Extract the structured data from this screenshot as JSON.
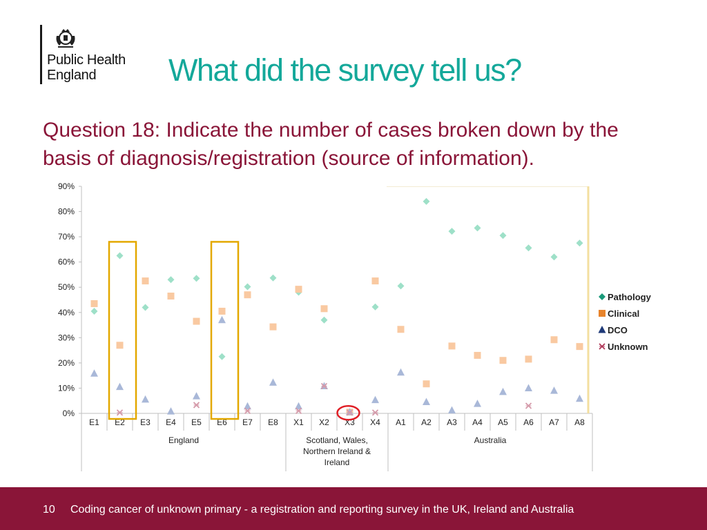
{
  "logo": {
    "line1": "Public Health",
    "line2": "England",
    "crest_icon": "royal-crest-icon"
  },
  "title": "What did the survey tell us?",
  "question": "Question 18: Indicate the number of cases broken down by the basis of diagnosis/registration (source of information).",
  "colors": {
    "title": "#14a89a",
    "question": "#8a1538",
    "footer_bg": "#8a1538",
    "highlight_box": "#e3a800",
    "highlight_circle": "#e01f26",
    "pathology": "#9ee0c8",
    "clinical": "#f9c9a1",
    "dco": "#a9b8d8",
    "unknown": "#d59aaa"
  },
  "chart_data": {
    "type": "scatter",
    "categories": [
      "E1",
      "E2",
      "E3",
      "E4",
      "E5",
      "E6",
      "E7",
      "E8",
      "X1",
      "X2",
      "X3",
      "X4",
      "A1",
      "A2",
      "A3",
      "A4",
      "A5",
      "A6",
      "A7",
      "A8"
    ],
    "groups": [
      {
        "label": "England",
        "categories": [
          "E1",
          "E2",
          "E3",
          "E4",
          "E5",
          "E6",
          "E7",
          "E8"
        ]
      },
      {
        "label": "Scotland, Wales, Northern Ireland & Ireland",
        "categories": [
          "X1",
          "X2",
          "X3",
          "X4"
        ]
      },
      {
        "label": "Australia",
        "categories": [
          "A1",
          "A2",
          "A3",
          "A4",
          "A5",
          "A6",
          "A7",
          "A8"
        ]
      }
    ],
    "ylim": [
      0,
      90
    ],
    "y_unit": "%",
    "yticks": [
      "0%",
      "10%",
      "20%",
      "30%",
      "40%",
      "50%",
      "60%",
      "70%",
      "80%",
      "90%"
    ],
    "legend_position": "right",
    "series": [
      {
        "name": "Pathology",
        "marker": "diamond",
        "color": "#9ee0c8",
        "values": [
          40.5,
          62.5,
          42,
          53,
          53.5,
          22.5,
          50.2,
          53.7,
          48,
          37,
          0.5,
          42.2,
          50.5,
          84,
          72.2,
          73.5,
          70.5,
          65.6,
          62,
          67.5
        ]
      },
      {
        "name": "Clinical",
        "marker": "square",
        "color": "#f9c9a1",
        "values": [
          43.5,
          27,
          52.5,
          46.5,
          36.5,
          40.5,
          47,
          34.3,
          49.2,
          41.5,
          0.5,
          52.5,
          33.3,
          11.7,
          26.7,
          23,
          21,
          21.5,
          29.2,
          26.5
        ]
      },
      {
        "name": "DCO",
        "marker": "triangle",
        "color": "#a9b8d8",
        "values": [
          15.8,
          10.5,
          5.5,
          0.8,
          6.8,
          37,
          2.8,
          12.2,
          2.8,
          10.8,
          0.5,
          5.3,
          16.2,
          4.5,
          1.2,
          3.8,
          8.5,
          10,
          9,
          5.8
        ]
      },
      {
        "name": "Unknown",
        "marker": "x",
        "color": "#d59aaa",
        "values": [
          null,
          0.3,
          null,
          null,
          3.3,
          null,
          1,
          null,
          1,
          10.8,
          0.3,
          0.3,
          null,
          null,
          null,
          null,
          null,
          3,
          null,
          null
        ]
      }
    ],
    "highlights": [
      {
        "category": "E2",
        "shape": "box"
      },
      {
        "category": "E6",
        "shape": "box"
      },
      {
        "category": "X3",
        "shape": "circle"
      }
    ]
  },
  "footer": {
    "page": "10",
    "text": "Coding cancer of unknown primary - a registration and reporting survey in the UK, Ireland and Australia"
  }
}
